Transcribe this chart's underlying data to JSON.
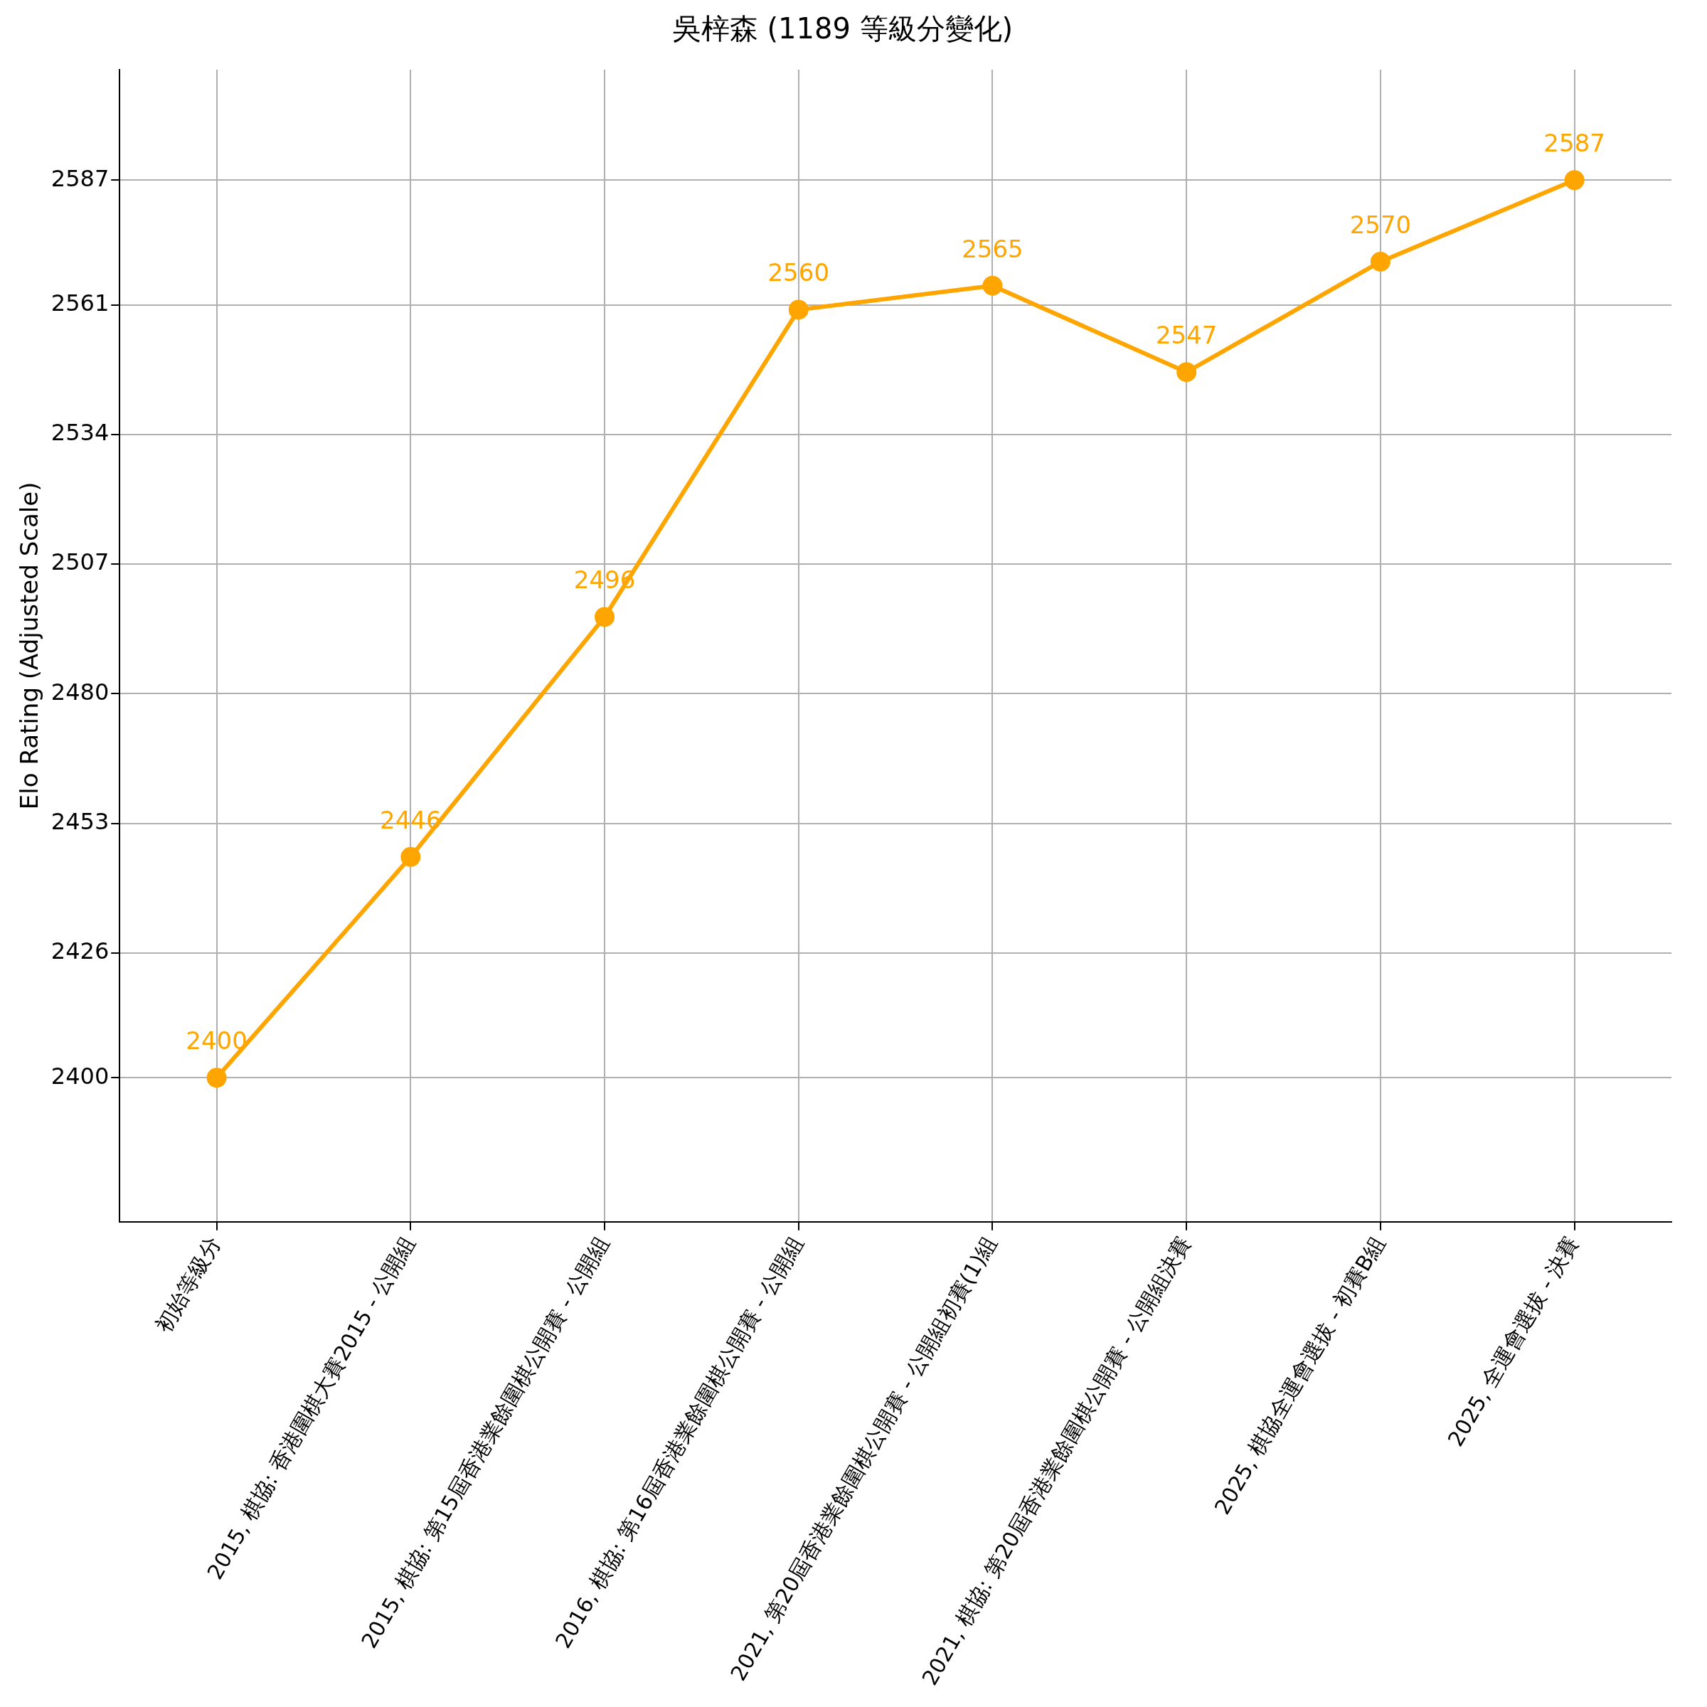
{
  "chart_data": {
    "type": "line",
    "title": "吳梓森 (1189 等級分變化)",
    "ylabel": "Elo Rating (Adjusted Scale)",
    "categories": [
      "初始等級分",
      "2015, 棋協: 香港圍棋大賽2015 - 公開組",
      "2015, 棋協: 第15屆香港業餘圍棋公開賽 - 公開組",
      "2016, 棋協: 第16屆香港業餘圍棋公開賽 - 公開組",
      "2021, 第20屆香港業餘圍棋公開賽 - 公開組初賽(1)組",
      "2021, 棋協: 第20屆香港業餘圍棋公開賽 - 公開組決賽",
      "2025, 棋協全運會選拔 - 初賽B組",
      "2025, 全運會選拔 - 決賽"
    ],
    "series": [
      {
        "color": "#ffa500",
        "values": [
          2400,
          2446,
          2496,
          2560,
          2565,
          2547,
          2570,
          2587
        ]
      }
    ],
    "ylim": [
      2370,
      2610
    ],
    "yticks": [
      2400,
      2426,
      2453,
      2480,
      2507,
      2534,
      2561,
      2587
    ],
    "grid": true,
    "marker": "circle",
    "line_style": "solid",
    "data_labels": true,
    "legend": false
  }
}
